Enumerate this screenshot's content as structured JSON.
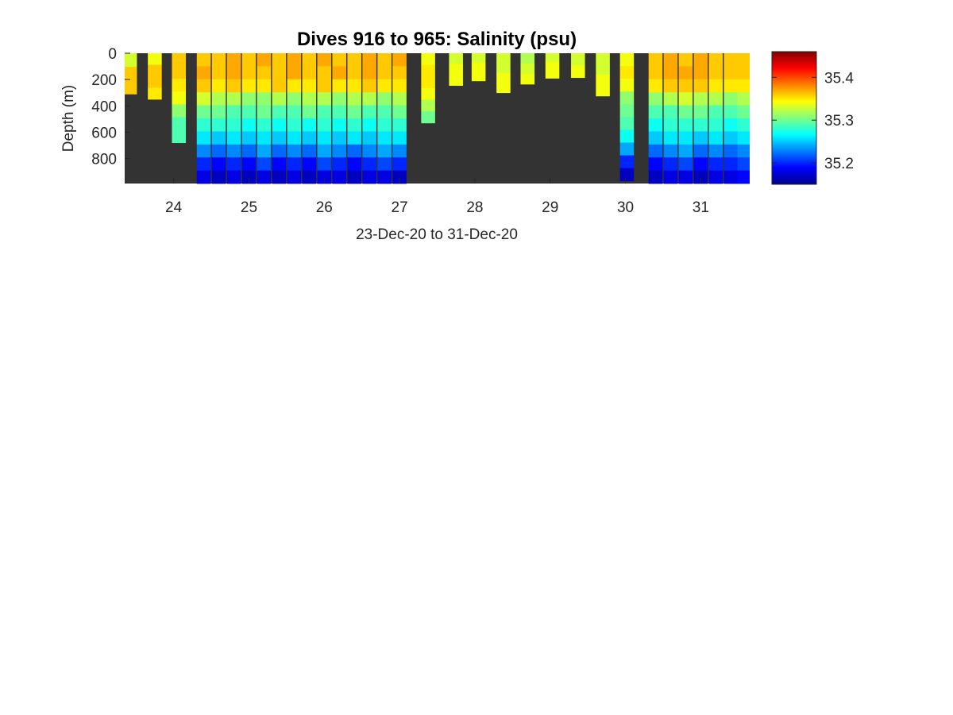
{
  "chart_data": {
    "type": "heatmap",
    "title": "Dives 916 to 965: Salinity (psu)",
    "xlabel": "23-Dec-20 to 31-Dec-20",
    "ylabel": "Depth (m)",
    "x_tick_values": [
      24,
      25,
      26,
      27,
      28,
      29,
      30,
      31
    ],
    "x_tick_labels": [
      "24",
      "25",
      "26",
      "27",
      "28",
      "29",
      "30",
      "31"
    ],
    "xlim": [
      23.35,
      31.65
    ],
    "y_tick_values": [
      0,
      200,
      400,
      600,
      800
    ],
    "y_tick_labels": [
      "0",
      "200",
      "400",
      "600",
      "800"
    ],
    "ylim": [
      0,
      990
    ],
    "y_reversed": true,
    "colorbar": {
      "min": 35.15,
      "max": 35.46,
      "tick_values": [
        35.2,
        35.3,
        35.4
      ],
      "tick_labels": [
        "35.2",
        "35.3",
        "35.4"
      ],
      "colormap": "jet"
    },
    "background_color": "#333333",
    "profiles": [
      {
        "x": 23.42,
        "max_depth": 310,
        "values": [
          35.33,
          35.36,
          35.36
        ]
      },
      {
        "x": 23.75,
        "max_depth": 350,
        "values": [
          35.34,
          35.36,
          35.36,
          35.35
        ]
      },
      {
        "x": 24.07,
        "max_depth": 680,
        "values": [
          35.36,
          35.36,
          35.35,
          35.34,
          35.31,
          35.29,
          35.29
        ]
      },
      {
        "x": 24.4,
        "max_depth": 990,
        "values": [
          35.36,
          35.37,
          35.36,
          35.33,
          35.3,
          35.28,
          35.26,
          35.23,
          35.2,
          35.18
        ]
      },
      {
        "x": 24.6,
        "max_depth": 990,
        "values": [
          35.36,
          35.36,
          35.35,
          35.32,
          35.3,
          35.28,
          35.25,
          35.22,
          35.19,
          35.17
        ]
      },
      {
        "x": 24.8,
        "max_depth": 990,
        "values": [
          35.37,
          35.37,
          35.36,
          35.32,
          35.29,
          35.28,
          35.26,
          35.23,
          35.2,
          35.18
        ]
      },
      {
        "x": 25.0,
        "max_depth": 990,
        "values": [
          35.36,
          35.36,
          35.35,
          35.31,
          35.29,
          35.27,
          35.25,
          35.22,
          35.19,
          35.17
        ]
      },
      {
        "x": 25.2,
        "max_depth": 990,
        "values": [
          35.37,
          35.36,
          35.35,
          35.31,
          35.3,
          35.28,
          35.26,
          35.24,
          35.21,
          35.18
        ]
      },
      {
        "x": 25.4,
        "max_depth": 990,
        "values": [
          35.36,
          35.36,
          35.36,
          35.32,
          35.29,
          35.27,
          35.25,
          35.22,
          35.19,
          35.17
        ]
      },
      {
        "x": 25.6,
        "max_depth": 990,
        "values": [
          35.37,
          35.37,
          35.35,
          35.31,
          35.29,
          35.28,
          35.26,
          35.23,
          35.2,
          35.18
        ]
      },
      {
        "x": 25.8,
        "max_depth": 990,
        "values": [
          35.36,
          35.36,
          35.35,
          35.32,
          35.3,
          35.27,
          35.25,
          35.22,
          35.19,
          35.17
        ]
      },
      {
        "x": 26.0,
        "max_depth": 990,
        "values": [
          35.37,
          35.36,
          35.36,
          35.32,
          35.29,
          35.28,
          35.26,
          35.24,
          35.21,
          35.18
        ]
      },
      {
        "x": 26.2,
        "max_depth": 990,
        "values": [
          35.36,
          35.37,
          35.35,
          35.31,
          35.29,
          35.27,
          35.25,
          35.23,
          35.2,
          35.18
        ]
      },
      {
        "x": 26.4,
        "max_depth": 990,
        "values": [
          35.36,
          35.36,
          35.35,
          35.32,
          35.3,
          35.28,
          35.26,
          35.22,
          35.19,
          35.17
        ]
      },
      {
        "x": 26.6,
        "max_depth": 990,
        "values": [
          35.37,
          35.37,
          35.36,
          35.32,
          35.29,
          35.27,
          35.25,
          35.23,
          35.2,
          35.18
        ]
      },
      {
        "x": 26.8,
        "max_depth": 990,
        "values": [
          35.36,
          35.36,
          35.35,
          35.31,
          35.29,
          35.28,
          35.26,
          35.24,
          35.21,
          35.18
        ]
      },
      {
        "x": 27.0,
        "max_depth": 990,
        "values": [
          35.37,
          35.36,
          35.35,
          35.32,
          35.3,
          35.28,
          35.26,
          35.23,
          35.2,
          35.17
        ]
      },
      {
        "x": 27.38,
        "max_depth": 530,
        "values": [
          35.34,
          35.35,
          35.35,
          35.34,
          35.32,
          35.3
        ]
      },
      {
        "x": 27.75,
        "max_depth": 245,
        "values": [
          35.33,
          35.34,
          35.34
        ]
      },
      {
        "x": 28.05,
        "max_depth": 210,
        "values": [
          35.33,
          35.34,
          35.34
        ]
      },
      {
        "x": 28.38,
        "max_depth": 300,
        "values": [
          35.33,
          35.33,
          35.34,
          35.34
        ]
      },
      {
        "x": 28.7,
        "max_depth": 235,
        "values": [
          35.32,
          35.33,
          35.34
        ]
      },
      {
        "x": 29.03,
        "max_depth": 190,
        "values": [
          35.33,
          35.34,
          35.34
        ]
      },
      {
        "x": 29.37,
        "max_depth": 185,
        "values": [
          35.33,
          35.34
        ]
      },
      {
        "x": 29.7,
        "max_depth": 325,
        "values": [
          35.33,
          35.33,
          35.34,
          35.34
        ]
      },
      {
        "x": 30.02,
        "max_depth": 970,
        "values": [
          35.34,
          35.35,
          35.34,
          35.31,
          35.3,
          35.29,
          35.27,
          35.24,
          35.2,
          35.17
        ]
      },
      {
        "x": 30.4,
        "max_depth": 990,
        "values": [
          35.36,
          35.36,
          35.35,
          35.31,
          35.29,
          35.27,
          35.25,
          35.22,
          35.19,
          35.17
        ]
      },
      {
        "x": 30.6,
        "max_depth": 990,
        "values": [
          35.37,
          35.37,
          35.36,
          35.32,
          35.29,
          35.28,
          35.26,
          35.23,
          35.2,
          35.18
        ]
      },
      {
        "x": 30.8,
        "max_depth": 990,
        "values": [
          35.36,
          35.37,
          35.36,
          35.33,
          35.3,
          35.28,
          35.26,
          35.24,
          35.21,
          35.18
        ]
      },
      {
        "x": 31.0,
        "max_depth": 990,
        "values": [
          35.37,
          35.37,
          35.36,
          35.32,
          35.3,
          35.28,
          35.25,
          35.22,
          35.19,
          35.17
        ]
      },
      {
        "x": 31.2,
        "max_depth": 990,
        "values": [
          35.36,
          35.36,
          35.35,
          35.32,
          35.29,
          35.28,
          35.26,
          35.23,
          35.2,
          35.18
        ]
      },
      {
        "x": 31.4,
        "max_depth": 990,
        "values": [
          35.36,
          35.36,
          35.35,
          35.31,
          35.29,
          35.27,
          35.25,
          35.22,
          35.2,
          35.18
        ]
      },
      {
        "x": 31.58,
        "max_depth": 990,
        "values": [
          35.36,
          35.36,
          35.35,
          35.32,
          35.3,
          35.28,
          35.26,
          35.23,
          35.21,
          35.19
        ]
      }
    ]
  }
}
